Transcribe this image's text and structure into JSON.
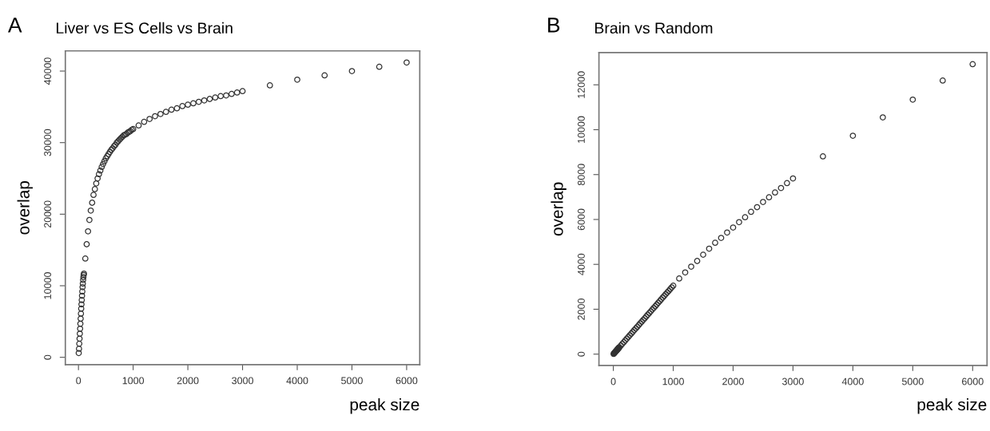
{
  "chart_data": [
    {
      "type": "scatter",
      "title": "Liver vs ES Cells vs Brain",
      "annotations": [
        "A"
      ],
      "xlabel": "peak size",
      "ylabel": "overlap",
      "marker": "circle",
      "grid": false,
      "xlim": [
        -240,
        6240
      ],
      "ylim": [
        -1024,
        42824
      ],
      "xticks": [
        0,
        1000,
        2000,
        3000,
        4000,
        5000,
        6000
      ],
      "yticks": [
        0,
        10000,
        20000,
        30000,
        40000
      ],
      "series": [
        {
          "color": "#333333",
          "x": [
            5,
            10,
            15,
            20,
            25,
            30,
            35,
            40,
            45,
            50,
            55,
            60,
            65,
            70,
            75,
            80,
            85,
            90,
            95,
            100,
            125,
            150,
            175,
            200,
            225,
            250,
            275,
            300,
            325,
            350,
            375,
            400,
            425,
            450,
            475,
            500,
            525,
            550,
            575,
            600,
            625,
            650,
            675,
            700,
            725,
            750,
            775,
            800,
            825,
            850,
            875,
            900,
            925,
            950,
            975,
            1000,
            1100,
            1200,
            1300,
            1400,
            1500,
            1600,
            1700,
            1800,
            1900,
            2000,
            2100,
            2200,
            2300,
            2400,
            2500,
            2600,
            2700,
            2800,
            2900,
            3000,
            3500,
            4000,
            4500,
            5000,
            5500,
            6000
          ],
          "values": [
            600,
            1200,
            1900,
            2600,
            3300,
            4000,
            4700,
            5400,
            6100,
            6800,
            7400,
            8000,
            8600,
            9200,
            9800,
            10300,
            10800,
            11200,
            11500,
            11700,
            13800,
            15800,
            17600,
            19200,
            20500,
            21600,
            22700,
            23500,
            24300,
            25000,
            25600,
            26100,
            26600,
            27000,
            27400,
            27800,
            28100,
            28400,
            28700,
            29000,
            29200,
            29500,
            29700,
            30000,
            30200,
            30400,
            30600,
            30800,
            31000,
            31100,
            31200,
            31400,
            31500,
            31600,
            31800,
            31900,
            32400,
            32900,
            33300,
            33700,
            34000,
            34300,
            34600,
            34800,
            35100,
            35300,
            35500,
            35700,
            35900,
            36100,
            36300,
            36500,
            36600,
            36800,
            37000,
            37200,
            38000,
            38800,
            39400,
            40000,
            40600,
            41200
          ]
        }
      ]
    },
    {
      "type": "scatter",
      "title": "Brain vs Random",
      "annotations": [
        "B"
      ],
      "xlabel": "peak size",
      "ylabel": "overlap",
      "marker": "circle",
      "grid": false,
      "xlim": [
        -240,
        6240
      ],
      "ylim": [
        -506,
        13436
      ],
      "xticks": [
        0,
        1000,
        2000,
        3000,
        4000,
        5000,
        6000
      ],
      "yticks": [
        0,
        2000,
        4000,
        6000,
        8000,
        10000,
        12000
      ],
      "series": [
        {
          "color": "#333333",
          "x": [
            5,
            10,
            15,
            20,
            25,
            30,
            35,
            40,
            45,
            50,
            55,
            60,
            65,
            70,
            75,
            80,
            85,
            90,
            95,
            100,
            125,
            150,
            175,
            200,
            225,
            250,
            275,
            300,
            325,
            350,
            375,
            400,
            425,
            450,
            475,
            500,
            525,
            550,
            575,
            600,
            625,
            650,
            675,
            700,
            725,
            750,
            775,
            800,
            825,
            850,
            875,
            900,
            925,
            950,
            975,
            1000,
            1100,
            1200,
            1300,
            1400,
            1500,
            1600,
            1700,
            1800,
            1900,
            2000,
            2100,
            2200,
            2300,
            2400,
            2500,
            2600,
            2700,
            2800,
            2900,
            3000,
            3500,
            4000,
            4500,
            5000,
            5500,
            6000
          ],
          "values": [
            10,
            30,
            40,
            60,
            80,
            90,
            100,
            120,
            140,
            150,
            160,
            180,
            200,
            210,
            230,
            240,
            260,
            280,
            290,
            300,
            380,
            460,
            535,
            610,
            690,
            765,
            840,
            915,
            990,
            1070,
            1145,
            1220,
            1300,
            1375,
            1450,
            1525,
            1600,
            1680,
            1755,
            1830,
            1905,
            1985,
            2060,
            2135,
            2210,
            2290,
            2365,
            2440,
            2520,
            2595,
            2670,
            2745,
            2820,
            2900,
            2975,
            3050,
            3370,
            3640,
            3900,
            4150,
            4430,
            4700,
            4960,
            5180,
            5420,
            5640,
            5880,
            6100,
            6340,
            6550,
            6780,
            6990,
            7200,
            7400,
            7620,
            7830,
            8810,
            9730,
            10550,
            11340,
            12190,
            12920
          ]
        }
      ]
    }
  ]
}
